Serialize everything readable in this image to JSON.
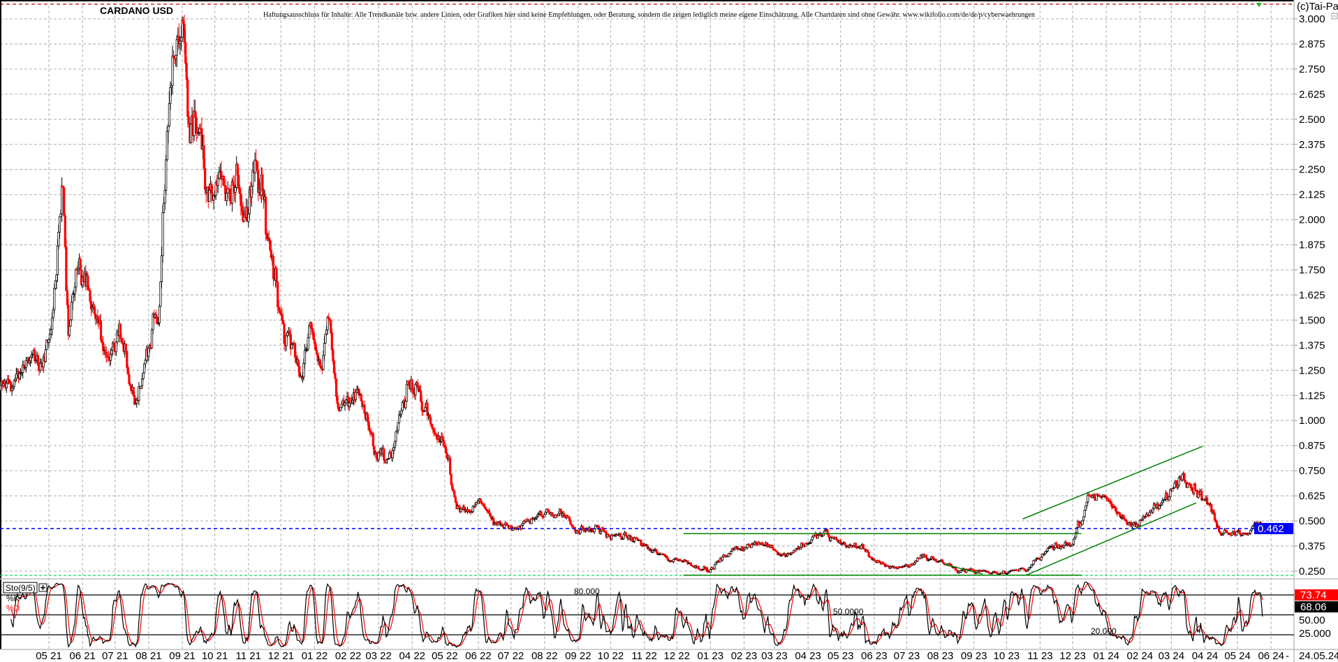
{
  "header": {
    "title": "CARDANO USD",
    "disclaimer": "Haftungsausschluss für Inhalte: Alle Trendkanäle bzw. andere Linien, oder Grafiken hier sind keine Empfehlungen, oder Beratung, sondern die zeigen lediglich meine eigene Einschätzung. Alle Chartdaten sind ohne Gewähr.  www.wikifolio.com/de/de/p/cyberwaehrungen",
    "copyright": "(c)Tai-Pan"
  },
  "colors": {
    "up_candle": "#000000",
    "down_candle": "#ff0000",
    "last_price_line": "#0000ff",
    "trendline": "#008000",
    "stoch_k": "#000000",
    "stoch_d": "#ff0000",
    "top_line": "#c00000",
    "support_dashed": "#00e060"
  },
  "chart_data": [
    {
      "type": "candlestick",
      "title": "CARDANO USD",
      "ylim": [
        0.2,
        3.1
      ],
      "grid": true,
      "y_ticks": [
        "3.000",
        "2.875",
        "2.750",
        "2.625",
        "2.500",
        "2.375",
        "2.250",
        "2.125",
        "2.000",
        "1.875",
        "1.750",
        "1.625",
        "1.500",
        "1.375",
        "1.250",
        "1.125",
        "1.000",
        "0.875",
        "0.750",
        "0.625",
        "0.500",
        "0.375",
        "0.250"
      ],
      "x_ticks": [
        "05 21",
        "06 21",
        "07 21",
        "08 21",
        "09 21",
        "10 21",
        "11 21",
        "12 21",
        "01 22",
        "02 22",
        "03 22",
        "04 22",
        "05 22",
        "06 22",
        "07 22",
        "08 22",
        "09 22",
        "10 22",
        "11 22",
        "12 22",
        "01 23",
        "02 23",
        "03 23",
        "04 23",
        "05 23",
        "06 23",
        "07 23",
        "08 23",
        "09 23",
        "10 23",
        "11 23",
        "12 23",
        "01 24",
        "02 24",
        "03 24",
        "04 24",
        "05 24",
        "06 24"
      ],
      "x_axis_end": "-",
      "last_date": "24.05.24",
      "last_price": "0.462",
      "last_price_value": 0.462,
      "price_path": [
        [
          "2021-03-17",
          1.15
        ],
        [
          "2021-04-01",
          1.2
        ],
        [
          "2021-04-15",
          1.35
        ],
        [
          "2021-04-25",
          1.22
        ],
        [
          "2021-05-05",
          1.55
        ],
        [
          "2021-05-14",
          2.15
        ],
        [
          "2021-05-19",
          1.5
        ],
        [
          "2021-05-26",
          1.75
        ],
        [
          "2021-06-05",
          1.68
        ],
        [
          "2021-06-20",
          1.4
        ],
        [
          "2021-06-26",
          1.3
        ],
        [
          "2021-07-05",
          1.42
        ],
        [
          "2021-07-20",
          1.1
        ],
        [
          "2021-07-28",
          1.3
        ],
        [
          "2021-08-10",
          1.55
        ],
        [
          "2021-08-15",
          2.05
        ],
        [
          "2021-08-23",
          2.8
        ],
        [
          "2021-09-02",
          2.95
        ],
        [
          "2021-09-07",
          2.5
        ],
        [
          "2021-09-15",
          2.45
        ],
        [
          "2021-09-25",
          2.15
        ],
        [
          "2021-10-10",
          2.2
        ],
        [
          "2021-10-25",
          2.15
        ],
        [
          "2021-11-01",
          2.0
        ],
        [
          "2021-11-08",
          2.3
        ],
        [
          "2021-11-15",
          2.05
        ],
        [
          "2021-11-25",
          1.75
        ],
        [
          "2021-12-05",
          1.45
        ],
        [
          "2021-12-20",
          1.25
        ],
        [
          "2021-12-28",
          1.45
        ],
        [
          "2022-01-05",
          1.3
        ],
        [
          "2022-01-15",
          1.45
        ],
        [
          "2022-01-22",
          1.05
        ],
        [
          "2022-02-05",
          1.15
        ],
        [
          "2022-02-15",
          1.1
        ],
        [
          "2022-02-25",
          0.85
        ],
        [
          "2022-03-10",
          0.8
        ],
        [
          "2022-03-29",
          1.2
        ],
        [
          "2022-04-05",
          1.15
        ],
        [
          "2022-04-20",
          0.95
        ],
        [
          "2022-05-05",
          0.8
        ],
        [
          "2022-05-12",
          0.55
        ],
        [
          "2022-05-25",
          0.55
        ],
        [
          "2022-06-05",
          0.6
        ],
        [
          "2022-06-15",
          0.48
        ],
        [
          "2022-07-01",
          0.46
        ],
        [
          "2022-07-25",
          0.52
        ],
        [
          "2022-08-15",
          0.55
        ],
        [
          "2022-09-01",
          0.46
        ],
        [
          "2022-09-15",
          0.47
        ],
        [
          "2022-10-01",
          0.43
        ],
        [
          "2022-10-25",
          0.4
        ],
        [
          "2022-11-10",
          0.35
        ],
        [
          "2022-11-25",
          0.31
        ],
        [
          "2022-12-15",
          0.29
        ],
        [
          "2022-12-31",
          0.25
        ],
        [
          "2023-01-15",
          0.33
        ],
        [
          "2023-02-05",
          0.38
        ],
        [
          "2023-02-20",
          0.39
        ],
        [
          "2023-03-10",
          0.33
        ],
        [
          "2023-03-25",
          0.37
        ],
        [
          "2023-04-15",
          0.44
        ],
        [
          "2023-05-01",
          0.39
        ],
        [
          "2023-05-20",
          0.37
        ],
        [
          "2023-06-10",
          0.27
        ],
        [
          "2023-07-05",
          0.28
        ],
        [
          "2023-07-14",
          0.33
        ],
        [
          "2023-08-01",
          0.3
        ],
        [
          "2023-08-18",
          0.26
        ],
        [
          "2023-09-10",
          0.25
        ],
        [
          "2023-10-10",
          0.25
        ],
        [
          "2023-10-25",
          0.28
        ],
        [
          "2023-11-10",
          0.37
        ],
        [
          "2023-11-30",
          0.38
        ],
        [
          "2023-12-05",
          0.45
        ],
        [
          "2023-12-15",
          0.62
        ],
        [
          "2023-12-28",
          0.63
        ],
        [
          "2024-01-10",
          0.55
        ],
        [
          "2024-01-22",
          0.48
        ],
        [
          "2024-02-05",
          0.52
        ],
        [
          "2024-02-20",
          0.58
        ],
        [
          "2024-03-05",
          0.68
        ],
        [
          "2024-03-12",
          0.75
        ],
        [
          "2024-03-25",
          0.65
        ],
        [
          "2024-04-05",
          0.58
        ],
        [
          "2024-04-14",
          0.45
        ],
        [
          "2024-05-01",
          0.44
        ],
        [
          "2024-05-15",
          0.45
        ],
        [
          "2024-05-20",
          0.48
        ],
        [
          "2024-05-24",
          0.462
        ]
      ],
      "trendlines": [
        {
          "from": [
            "2022-12-07",
            0.437
          ],
          "to": [
            "2023-12-09",
            0.437
          ]
        },
        {
          "from": [
            "2022-12-07",
            0.23
          ],
          "to": [
            "2023-12-09",
            0.23
          ]
        },
        {
          "from": [
            "2023-08-04",
            0.285
          ],
          "to": [
            "2023-09-09",
            0.235
          ]
        },
        {
          "from": [
            "2023-10-16",
            0.51
          ],
          "to": [
            "2024-03-30",
            0.872
          ]
        },
        {
          "from": [
            "2023-10-19",
            0.23
          ],
          "to": [
            "2024-03-24",
            0.59
          ]
        }
      ]
    },
    {
      "type": "line",
      "title": "Sto(9/5)",
      "ylim": [
        0,
        100
      ],
      "levels": [
        80,
        50,
        20
      ],
      "level_labels": [
        "80.000",
        "50.0000",
        "20.000"
      ],
      "y_ticks": [
        "50.00",
        "25.000"
      ],
      "series": [
        {
          "name": "%K",
          "last": "68.06"
        },
        {
          "name": "%D",
          "last": "73.74"
        }
      ]
    }
  ]
}
